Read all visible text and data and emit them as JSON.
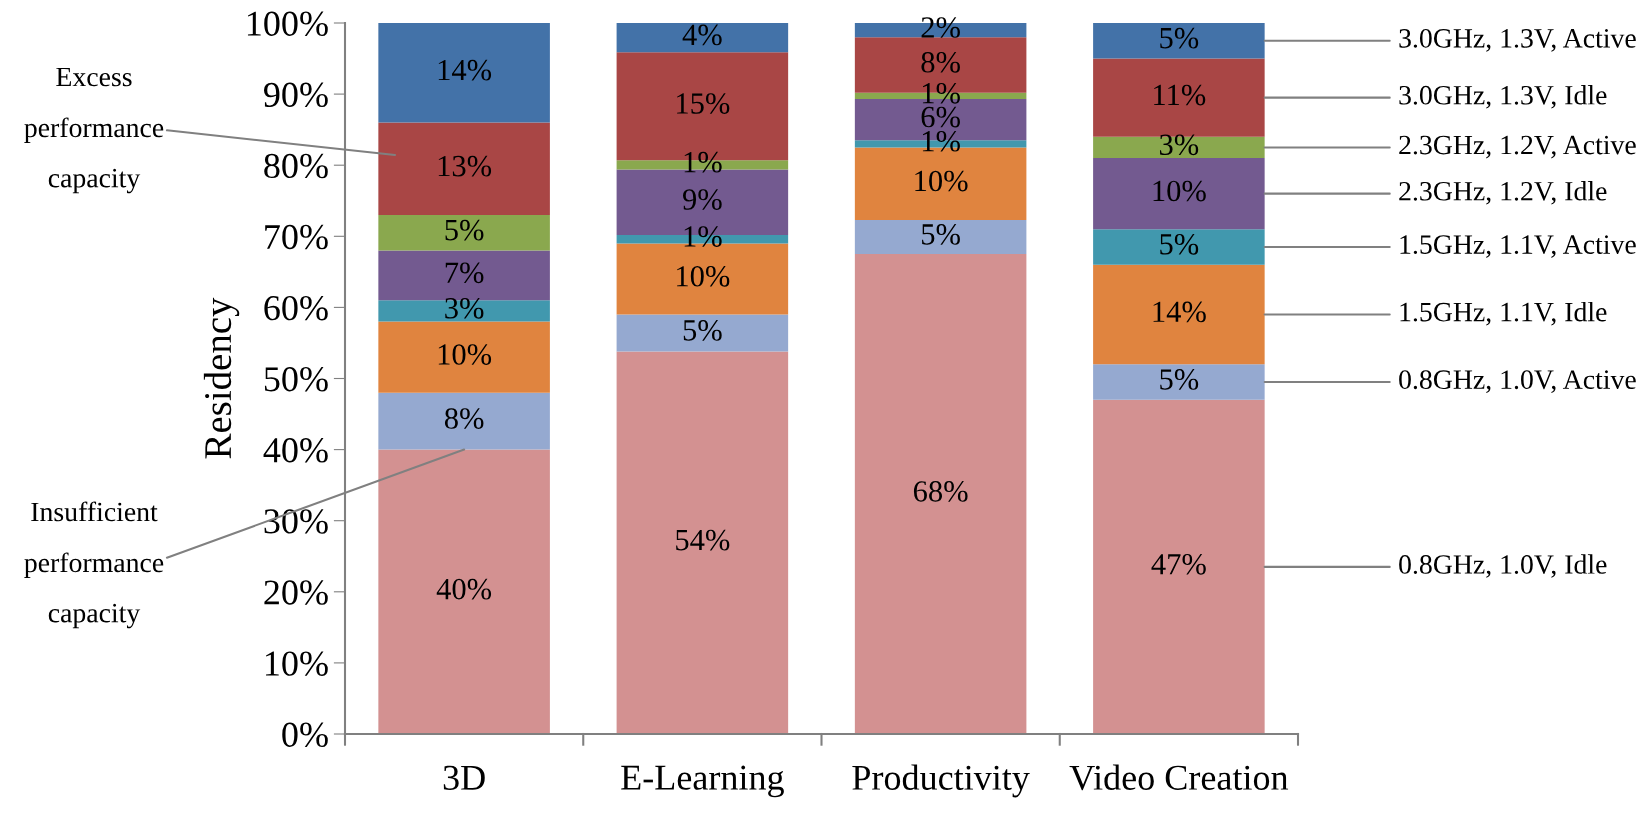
{
  "chart_data": {
    "type": "bar",
    "stacked": true,
    "ylabel": "Residency",
    "categories": [
      "3D",
      "E-Learning",
      "Productivity",
      "Video Creation"
    ],
    "series": [
      {
        "name": "0.8GHz, 1.0V, Idle",
        "color": "#d39191",
        "values": [
          40,
          53.8,
          67.5,
          47
        ],
        "value_labels": [
          "40%",
          "54%",
          "68%",
          "47%"
        ]
      },
      {
        "name": "0.8GHz, 1.0V, Active",
        "color": "#95a9d0",
        "values": [
          8,
          5.2,
          4.8,
          5
        ],
        "value_labels": [
          "8%",
          "5%",
          "5%",
          "5%"
        ]
      },
      {
        "name": "1.5GHz, 1.1V, Idle",
        "color": "#e0843f",
        "values": [
          10,
          10,
          10.2,
          14
        ],
        "value_labels": [
          "10%",
          "10%",
          "10%",
          "14%"
        ]
      },
      {
        "name": "1.5GHz, 1.1V, Active",
        "color": "#4198ae",
        "values": [
          3,
          1.2,
          1,
          5
        ],
        "value_labels": [
          "3%",
          "1%",
          "1%",
          "5%"
        ]
      },
      {
        "name": "2.3GHz, 1.2V, Idle",
        "color": "#735a90",
        "values": [
          7,
          9.2,
          5.8,
          10
        ],
        "value_labels": [
          "7%",
          "9%",
          "6%",
          "10%"
        ]
      },
      {
        "name": "2.3GHz, 1.2V, Active",
        "color": "#8aa84e",
        "values": [
          5,
          1.3,
          0.9,
          3
        ],
        "value_labels": [
          "5%",
          "1%",
          "1%",
          "3%"
        ]
      },
      {
        "name": "3.0GHz, 1.3V, Idle",
        "color": "#a94645",
        "values": [
          13,
          15.2,
          7.8,
          11
        ],
        "value_labels": [
          "13%",
          "15%",
          "8%",
          "11%"
        ]
      },
      {
        "name": "3.0GHz, 1.3V, Active",
        "color": "#4372a8",
        "values": [
          14,
          4.1,
          2,
          5
        ],
        "value_labels": [
          "14%",
          "4%",
          "2%",
          "5%"
        ]
      }
    ],
    "ylim": [
      0,
      100
    ],
    "yticks": [
      {
        "value": 0,
        "label": "0%"
      },
      {
        "value": 10,
        "label": "10%"
      },
      {
        "value": 20,
        "label": "20%"
      },
      {
        "value": 30,
        "label": "30%"
      },
      {
        "value": 40,
        "label": "40%"
      },
      {
        "value": 50,
        "label": "50%"
      },
      {
        "value": 60,
        "label": "60%"
      },
      {
        "value": 70,
        "label": "70%"
      },
      {
        "value": 80,
        "label": "80%"
      },
      {
        "value": 90,
        "label": "90%"
      },
      {
        "value": 100,
        "label": "100%"
      }
    ],
    "annotations": [
      "Excess\nperformance\ncapacity",
      {
        "text": "Insufficient\nperformance\ncapacity",
        "x": "3D",
        "y": 40
      }
    ],
    "legend": "right",
    "grid": false
  }
}
